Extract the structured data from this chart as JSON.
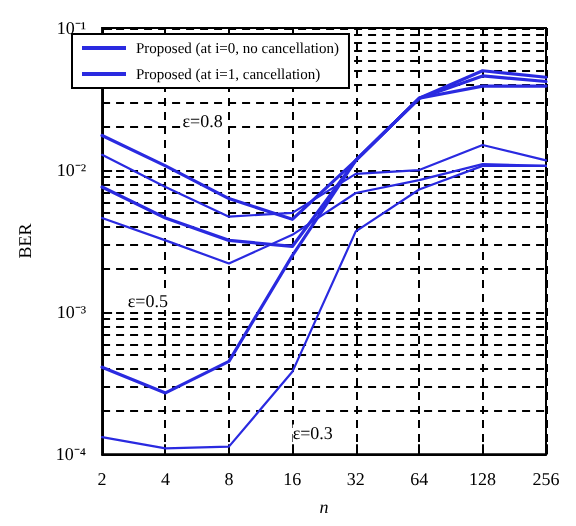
{
  "chart_data": {
    "type": "line",
    "xlabel": "n",
    "ylabel": "BER",
    "x": [
      2,
      4,
      8,
      16,
      32,
      64,
      128,
      256
    ],
    "series": [
      {
        "name": "Proposed (at i=0, no cancellation)",
        "color": "#2a2ae0",
        "values": [
          0.0175,
          0.0107,
          0.0063,
          0.0045,
          0.0117,
          0.032,
          0.05,
          0.045
        ]
      },
      {
        "name": "Proposed (at i=1, cancellation)",
        "color": "#2a2ae0",
        "values": [
          0.0128,
          0.0076,
          0.0047,
          0.005,
          0.0094,
          0.01,
          0.015,
          0.0117
        ]
      },
      {
        "color": "#2a2ae0",
        "values": [
          0.0076,
          0.0046,
          0.0032,
          0.0029,
          0.0117,
          0.032,
          0.046,
          0.042
        ]
      },
      {
        "color": "#2a2ae0",
        "values": [
          0.0046,
          0.0032,
          0.0022,
          0.0035,
          0.0069,
          0.0085,
          0.011,
          0.0107
        ]
      },
      {
        "color": "#2a2ae0",
        "values": [
          0.00041,
          0.00027,
          0.00045,
          0.0025,
          0.0117,
          0.032,
          0.039,
          0.039
        ]
      },
      {
        "color": "#2a2ae0",
        "values": [
          0.000132,
          0.00011,
          0.000113,
          0.00038,
          0.0037,
          0.0073,
          0.0107,
          0.0107
        ]
      }
    ],
    "log": "xy",
    "xlim": [
      2,
      256
    ],
    "xticks": [
      2,
      4,
      8,
      16,
      32,
      64,
      128,
      256
    ],
    "ylim": [
      0.0001,
      0.1
    ],
    "yticks": [
      {
        "value": 0.0001,
        "label": "10⁻⁴"
      },
      {
        "value": 0.001,
        "label": "10⁻³"
      },
      {
        "value": 0.01,
        "label": "10⁻²"
      },
      {
        "value": 0.1,
        "label": "10⁻¹"
      }
    ],
    "grid": true,
    "legend": "top left",
    "marker": "none",
    "line_style": "solid",
    "annotations": [
      {
        "text": "ε=0.8",
        "x": 6,
        "y": 0.022
      },
      {
        "text": "ε=0.5",
        "x": 3.3,
        "y": 0.0012
      },
      {
        "text": "ε=0.3",
        "x": 20,
        "y": 0.00014
      }
    ]
  }
}
